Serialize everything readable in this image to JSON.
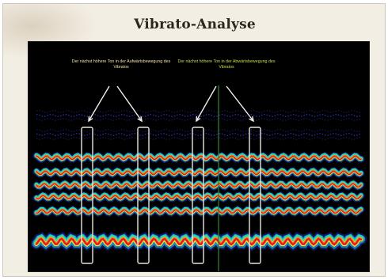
{
  "title": "Vibrato-Analyse",
  "annotations": [
    {
      "text": "Der nächst höhere Ton in der Aufwärtsbewegung des Vibratos"
    },
    {
      "text": "Der nächst höhere Ton in der Abwärtsbewegung des Vibratos"
    }
  ],
  "colors": {
    "background": "#000000",
    "annotation_left": "#f2e3a0",
    "annotation_right": "#c7dd4a",
    "marker_box": "#e8e6dc",
    "cursor_line": "#2f7d2f"
  },
  "partials": [
    {
      "kind": "strong",
      "intensity": 1.0
    },
    {
      "kind": "strong",
      "intensity": 0.9
    },
    {
      "kind": "strong",
      "intensity": 0.85
    },
    {
      "kind": "strong",
      "intensity": 0.8
    },
    {
      "kind": "strong",
      "intensity": 0.75
    },
    {
      "kind": "faint",
      "intensity": 0.3
    },
    {
      "kind": "faint",
      "intensity": 0.2
    }
  ],
  "marker_boxes": 4,
  "annotation_arrows": 4
}
